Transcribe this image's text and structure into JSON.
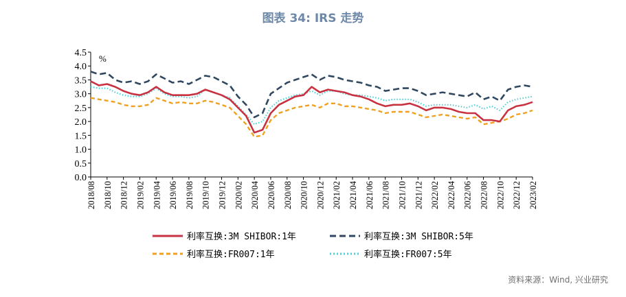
{
  "figure": {
    "title": "图表 34: IRS 走势",
    "source": "资料来源：Wind, 兴业研究"
  },
  "colors": {
    "title": "#6d88a8",
    "shibor_1y": "#c8313f",
    "shibor_5y": "#2f4860",
    "fr007_1y": "#f0a020",
    "fr007_5y": "#4dd1d8"
  },
  "chart_data": {
    "type": "line",
    "unit_label": "%",
    "ylim": [
      0.0,
      4.5
    ],
    "yticks": [
      "4.5",
      "4.0",
      "3.5",
      "3.0",
      "2.5",
      "2.0",
      "1.5",
      "1.0",
      "0.5",
      "0.0"
    ],
    "xlim": [
      "2018-08",
      "2023-02"
    ],
    "xticks": [
      "2018/08",
      "2018/10",
      "2018/12",
      "2019/02",
      "2019/04",
      "2019/06",
      "2019/08",
      "2019/10",
      "2019/12",
      "2020/02",
      "2020/04",
      "2020/06",
      "2020/08",
      "2020/10",
      "2020/12",
      "2021/02",
      "2021/04",
      "2021/06",
      "2021/08",
      "2021/10",
      "2021/12",
      "2022/02",
      "2022/04",
      "2022/06",
      "2022/08",
      "2022/10",
      "2022/12",
      "2023/02"
    ],
    "grid": false,
    "legend_position": "bottom",
    "x": [
      "2018-08",
      "2018-09",
      "2018-10",
      "2018-11",
      "2018-12",
      "2019-01",
      "2019-02",
      "2019-03",
      "2019-04",
      "2019-05",
      "2019-06",
      "2019-07",
      "2019-08",
      "2019-09",
      "2019-10",
      "2019-11",
      "2019-12",
      "2020-01",
      "2020-02",
      "2020-03",
      "2020-04",
      "2020-05",
      "2020-06",
      "2020-07",
      "2020-08",
      "2020-09",
      "2020-10",
      "2020-11",
      "2020-12",
      "2021-01",
      "2021-02",
      "2021-03",
      "2021-04",
      "2021-05",
      "2021-06",
      "2021-07",
      "2021-08",
      "2021-09",
      "2021-10",
      "2021-11",
      "2021-12",
      "2022-01",
      "2022-02",
      "2022-03",
      "2022-04",
      "2022-05",
      "2022-06",
      "2022-07",
      "2022-08",
      "2022-09",
      "2022-10",
      "2022-11",
      "2022-12",
      "2023-01",
      "2023-02"
    ],
    "series": [
      {
        "name": "利率互换:3M SHIBOR:1年",
        "style": "solid",
        "color_key": "shibor_1y",
        "values": [
          3.45,
          3.3,
          3.35,
          3.25,
          3.1,
          3.0,
          2.95,
          3.05,
          3.25,
          3.05,
          2.95,
          2.95,
          2.95,
          3.0,
          3.15,
          3.05,
          2.95,
          2.8,
          2.5,
          2.2,
          1.6,
          1.7,
          2.3,
          2.6,
          2.75,
          2.9,
          2.95,
          3.25,
          3.05,
          3.15,
          3.1,
          3.05,
          2.95,
          2.9,
          2.8,
          2.65,
          2.55,
          2.6,
          2.6,
          2.65,
          2.55,
          2.4,
          2.5,
          2.5,
          2.45,
          2.35,
          2.3,
          2.3,
          2.05,
          2.05,
          2.0,
          2.4,
          2.55,
          2.6,
          2.7
        ]
      },
      {
        "name": "利率互换:3M SHIBOR:5年",
        "style": "dashed",
        "color_key": "shibor_5y",
        "values": [
          3.8,
          3.7,
          3.75,
          3.5,
          3.4,
          3.45,
          3.35,
          3.45,
          3.7,
          3.55,
          3.4,
          3.45,
          3.35,
          3.5,
          3.65,
          3.6,
          3.45,
          3.3,
          2.9,
          2.6,
          2.15,
          2.3,
          3.0,
          3.2,
          3.4,
          3.5,
          3.6,
          3.7,
          3.5,
          3.65,
          3.6,
          3.5,
          3.45,
          3.4,
          3.3,
          3.25,
          3.1,
          3.15,
          3.2,
          3.2,
          3.1,
          2.95,
          3.0,
          3.05,
          3.0,
          2.95,
          2.9,
          3.05,
          2.8,
          2.9,
          2.75,
          3.15,
          3.25,
          3.3,
          3.25
        ]
      },
      {
        "name": "利率互换:FR007:1年",
        "style": "dashed",
        "color_key": "fr007_1y",
        "values": [
          2.85,
          2.8,
          2.75,
          2.7,
          2.6,
          2.55,
          2.55,
          2.6,
          2.85,
          2.75,
          2.65,
          2.7,
          2.65,
          2.65,
          2.75,
          2.7,
          2.6,
          2.5,
          2.2,
          1.9,
          1.45,
          1.5,
          2.05,
          2.3,
          2.4,
          2.5,
          2.55,
          2.6,
          2.5,
          2.65,
          2.65,
          2.55,
          2.55,
          2.5,
          2.45,
          2.4,
          2.3,
          2.35,
          2.35,
          2.35,
          2.25,
          2.15,
          2.2,
          2.25,
          2.2,
          2.15,
          2.1,
          2.15,
          1.9,
          1.95,
          2.0,
          2.1,
          2.25,
          2.3,
          2.4
        ]
      },
      {
        "name": "利率互换:FR007:5年",
        "style": "dotted",
        "color_key": "fr007_5y",
        "values": [
          3.25,
          3.2,
          3.2,
          3.05,
          2.95,
          2.9,
          2.9,
          3.0,
          3.2,
          3.0,
          2.9,
          2.9,
          2.85,
          2.9,
          3.15,
          3.05,
          2.95,
          2.85,
          2.55,
          2.25,
          1.9,
          2.0,
          2.5,
          2.75,
          2.85,
          2.95,
          3.0,
          3.1,
          2.95,
          3.1,
          3.1,
          3.0,
          2.95,
          2.95,
          2.9,
          2.85,
          2.75,
          2.8,
          2.8,
          2.8,
          2.7,
          2.55,
          2.6,
          2.6,
          2.6,
          2.55,
          2.5,
          2.6,
          2.45,
          2.55,
          2.4,
          2.7,
          2.8,
          2.85,
          2.9
        ]
      }
    ]
  }
}
